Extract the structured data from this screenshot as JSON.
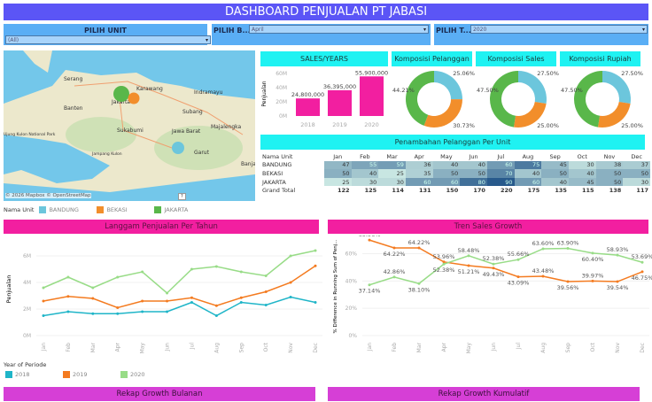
{
  "title": "DASHBOARD PENJUALAN PT JABASI",
  "filters": [
    {
      "label": "PILIH UNIT",
      "value": "(All)"
    },
    {
      "label": "PILIH B...",
      "value": "April"
    },
    {
      "label": "PILIH T...",
      "value": "2020"
    }
  ],
  "map": {
    "places": [
      "Serang",
      "Karawang",
      "Indramayu",
      "Banten",
      "Subang",
      "Majalengka",
      "Sukabumi",
      "Jawa Barat",
      "Jampang Kulon",
      "Garut",
      "Ujung Kulon National Park",
      "Banjar",
      "Jakarta"
    ],
    "attribution": "© 2026 Mapbox © OpenStreetMap",
    "help": "?",
    "legend_title": "Nama Unit",
    "legend": [
      {
        "name": "BANDUNG",
        "color": "#6cc6dc"
      },
      {
        "name": "BEKASI",
        "color": "#f28e2b"
      },
      {
        "name": "JAKARTA",
        "color": "#59b74a"
      }
    ]
  },
  "sales_years": {
    "title": "SALES/YEARS",
    "ylabel": "Penjualan",
    "yticks": [
      "60M",
      "40M",
      "20M",
      "0M"
    ],
    "chart_data": {
      "type": "bar",
      "categories": [
        "2018",
        "2019",
        "2020"
      ],
      "values": [
        24800000,
        36395000,
        55900000
      ],
      "labels": [
        "24,800,000",
        "36,395,000",
        "55,900,000"
      ],
      "ylim": [
        0,
        60000000
      ],
      "color": "#f21fa0"
    }
  },
  "donuts": [
    {
      "title": "Komposisi Pelanggan",
      "chart_data": {
        "type": "pie",
        "values": [
          25.06,
          30.73,
          44.21
        ],
        "labels": [
          "25.06%",
          "30.73%",
          "44.21%"
        ]
      }
    },
    {
      "title": "Komposisi Sales",
      "chart_data": {
        "type": "pie",
        "values": [
          27.5,
          25.0,
          47.5
        ],
        "labels": [
          "27.50%",
          "25.00%",
          "47.50%"
        ]
      }
    },
    {
      "title": "Komposisi Rupiah",
      "chart_data": {
        "type": "pie",
        "values": [
          27.5,
          25.0,
          47.5
        ],
        "labels": [
          "27.50%",
          "25.00%",
          "47.50%"
        ]
      }
    }
  ],
  "donut_colors": [
    "#6cc6dc",
    "#f28e2b",
    "#59b74a"
  ],
  "heatmap": {
    "title": "Penambahan Pelanggan Per Unit",
    "columns": [
      "Nama Unit",
      "Jan",
      "Feb",
      "Mar",
      "Apr",
      "May",
      "Jun",
      "Jul",
      "Aug",
      "Sep",
      "Oct",
      "Nov",
      "Dec"
    ],
    "rows": [
      {
        "name": "BANDUNG",
        "values": [
          47,
          55,
          59,
          36,
          40,
          40,
          60,
          75,
          45,
          30,
          38,
          37
        ]
      },
      {
        "name": "BEKASI",
        "values": [
          50,
          40,
          25,
          35,
          50,
          50,
          70,
          40,
          50,
          40,
          50,
          50
        ]
      },
      {
        "name": "JAKARTA",
        "values": [
          25,
          30,
          30,
          60,
          60,
          80,
          90,
          60,
          40,
          45,
          50,
          30
        ]
      }
    ],
    "total_label": "Grand Total",
    "totals": [
      122,
      125,
      114,
      131,
      150,
      170,
      220,
      175,
      135,
      115,
      138,
      117
    ]
  },
  "langgam": {
    "title": "Langgam Penjualan Per Tahun",
    "ylabel": "Penjualan",
    "legend_title": "Year of Periode",
    "chart_data": {
      "type": "line",
      "categories": [
        "Jan",
        "Feb",
        "Mar",
        "Apr",
        "May",
        "Jun",
        "Jul",
        "Aug",
        "Sep",
        "Oct",
        "Nov",
        "Dec"
      ],
      "yticks": [
        "0M",
        "2M",
        "4M",
        "6M"
      ],
      "ylim": [
        0,
        7
      ],
      "unit": "M",
      "series": [
        {
          "name": "2018",
          "color": "#1fb5c8",
          "values": [
            1.5,
            1.8,
            1.65,
            1.65,
            1.8,
            1.8,
            2.5,
            1.5,
            2.5,
            2.3,
            2.9,
            2.5
          ]
        },
        {
          "name": "2019",
          "color": "#f47b20",
          "values": [
            2.6,
            2.95,
            2.8,
            2.1,
            2.6,
            2.6,
            2.85,
            2.25,
            2.85,
            3.3,
            4.0,
            5.25
          ]
        },
        {
          "name": "2020",
          "color": "#98dc87",
          "values": [
            3.6,
            4.4,
            3.6,
            4.4,
            4.8,
            3.2,
            5.0,
            5.2,
            4.8,
            4.5,
            6.0,
            6.4
          ]
        }
      ]
    }
  },
  "tren": {
    "title": "Tren Sales Growth",
    "ylabel": "% Difference in Running Sum of Penj...",
    "chart_data": {
      "type": "line",
      "categories": [
        "Jan",
        "Feb",
        "Mar",
        "Apr",
        "May",
        "Jun",
        "Jul",
        "Aug",
        "Sep",
        "Oct",
        "Nov",
        "Dec"
      ],
      "yticks": [
        "0%",
        "20%",
        "40%",
        "60%"
      ],
      "ylim": [
        0,
        72
      ],
      "series": [
        {
          "color": "#f47b20",
          "values": [
            69.96,
            64.22,
            64.22,
            53.96,
            51.21,
            49.43,
            43.09,
            43.48,
            39.56,
            39.97,
            39.54,
            46.75
          ]
        },
        {
          "color": "#98dc87",
          "values": [
            37.14,
            42.86,
            38.1,
            52.38,
            58.48,
            52.38,
            55.66,
            63.6,
            63.9,
            60.4,
            58.93,
            53.69
          ]
        }
      ]
    }
  },
  "bottom": {
    "left": "Rekap Growth Bulanan",
    "right": "Rekap Growth Kumulatif"
  }
}
